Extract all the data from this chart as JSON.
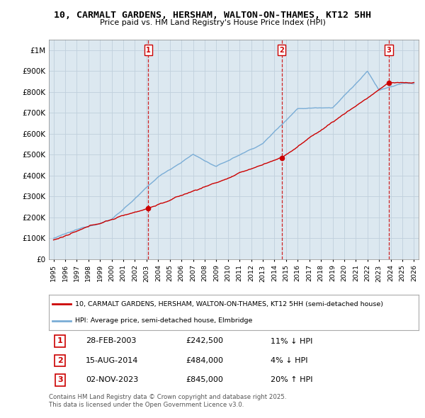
{
  "title": "10, CARMALT GARDENS, HERSHAM, WALTON-ON-THAMES, KT12 5HH",
  "subtitle": "Price paid vs. HM Land Registry's House Price Index (HPI)",
  "legend_line1": "10, CARMALT GARDENS, HERSHAM, WALTON-ON-THAMES, KT12 5HH (semi-detached house)",
  "legend_line2": "HPI: Average price, semi-detached house, Elmbridge",
  "transactions": [
    {
      "num": 1,
      "date": "28-FEB-2003",
      "price": "£242,500",
      "diff": "11% ↓ HPI",
      "year": 2003.15
    },
    {
      "num": 2,
      "date": "15-AUG-2014",
      "price": "£484,000",
      "diff": "4% ↓ HPI",
      "year": 2014.62
    },
    {
      "num": 3,
      "date": "02-NOV-2023",
      "price": "£845,000",
      "diff": "20% ↑ HPI",
      "year": 2023.84
    }
  ],
  "transaction_prices": [
    242500,
    484000,
    845000
  ],
  "footnote": "Contains HM Land Registry data © Crown copyright and database right 2025.\nThis data is licensed under the Open Government Licence v3.0.",
  "ylim": [
    0,
    1050000
  ],
  "yticks": [
    0,
    100000,
    200000,
    300000,
    400000,
    500000,
    600000,
    700000,
    800000,
    900000,
    1000000
  ],
  "ytick_labels": [
    "£0",
    "£100K",
    "£200K",
    "£300K",
    "£400K",
    "£500K",
    "£600K",
    "£700K",
    "£800K",
    "£900K",
    "£1M"
  ],
  "price_color": "#cc0000",
  "hpi_color": "#7aadd6",
  "vline_color": "#cc0000",
  "background_color": "#ffffff",
  "chart_bg": "#dce8f0",
  "grid_color": "#c0d0dc"
}
